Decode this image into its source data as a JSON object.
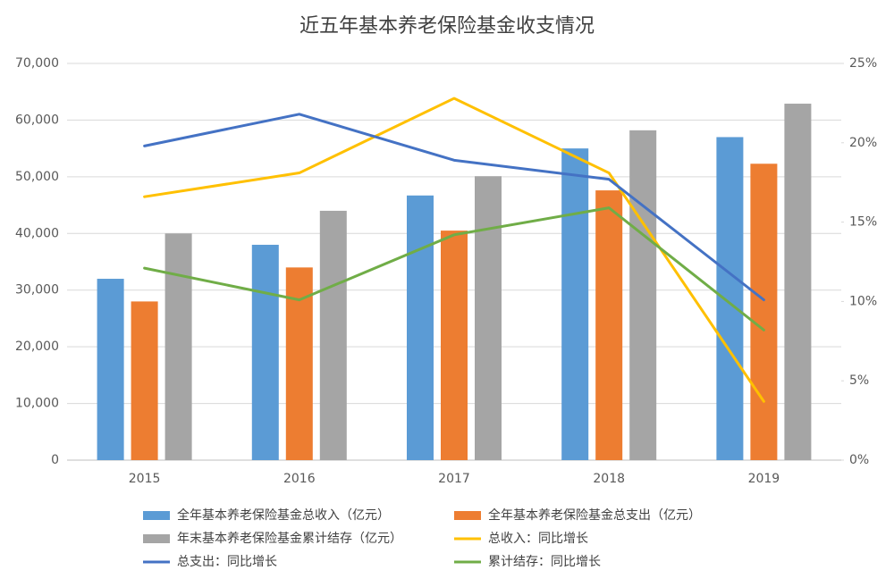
{
  "chart_data": {
    "type": "bar",
    "title": "近五年基本养老保险基金收支情况",
    "categories": [
      "2015",
      "2016",
      "2017",
      "2018",
      "2019"
    ],
    "series": [
      {
        "name": "全年基本养老保险基金总收入（亿元）",
        "type": "bar",
        "color": "#5b9bd5",
        "values": [
          32000,
          38000,
          46700,
          55000,
          57000
        ]
      },
      {
        "name": "全年基本养老保险基金总支出（亿元）",
        "type": "bar",
        "color": "#ed7d31",
        "values": [
          28000,
          34000,
          40500,
          47600,
          52300
        ]
      },
      {
        "name": "年末基本养老保险基金累计结存（亿元）",
        "type": "bar",
        "color": "#a5a5a5",
        "values": [
          40000,
          44000,
          50100,
          58200,
          62900
        ]
      },
      {
        "name": "总收入：同比增长",
        "type": "line",
        "axis": "y2",
        "color": "#ffc000",
        "values": [
          16.6,
          18.1,
          22.8,
          18.1,
          3.7
        ]
      },
      {
        "name": "总支出：同比增长",
        "type": "line",
        "axis": "y2",
        "color": "#4472c4",
        "values": [
          19.8,
          21.8,
          18.9,
          17.7,
          10.1
        ]
      },
      {
        "name": "累计结存：同比增长",
        "type": "line",
        "axis": "y2",
        "color": "#70ad47",
        "values": [
          12.1,
          10.1,
          14.2,
          15.9,
          8.2
        ]
      }
    ],
    "ylim": [
      0,
      70000
    ],
    "yticks": [
      0,
      {
        "value": 10000,
        "label": "10,000"
      },
      {
        "value": 20000,
        "label": "20,000"
      },
      {
        "value": 30000,
        "label": "30,000"
      },
      {
        "value": 40000,
        "label": "40,000"
      },
      {
        "value": 50000,
        "label": "50,000"
      },
      {
        "value": 60000,
        "label": "60,000"
      },
      {
        "value": 70000,
        "label": "70,000"
      }
    ],
    "y2lim": [
      0,
      25
    ],
    "y2ticks": [
      {
        "value": 0,
        "label": "0%"
      },
      {
        "value": 5,
        "label": "5%"
      },
      {
        "value": 10,
        "label": "10%"
      },
      {
        "value": 15,
        "label": "15%"
      },
      {
        "value": 20,
        "label": "20%"
      },
      {
        "value": 25,
        "label": "25%"
      }
    ],
    "grid": true
  }
}
